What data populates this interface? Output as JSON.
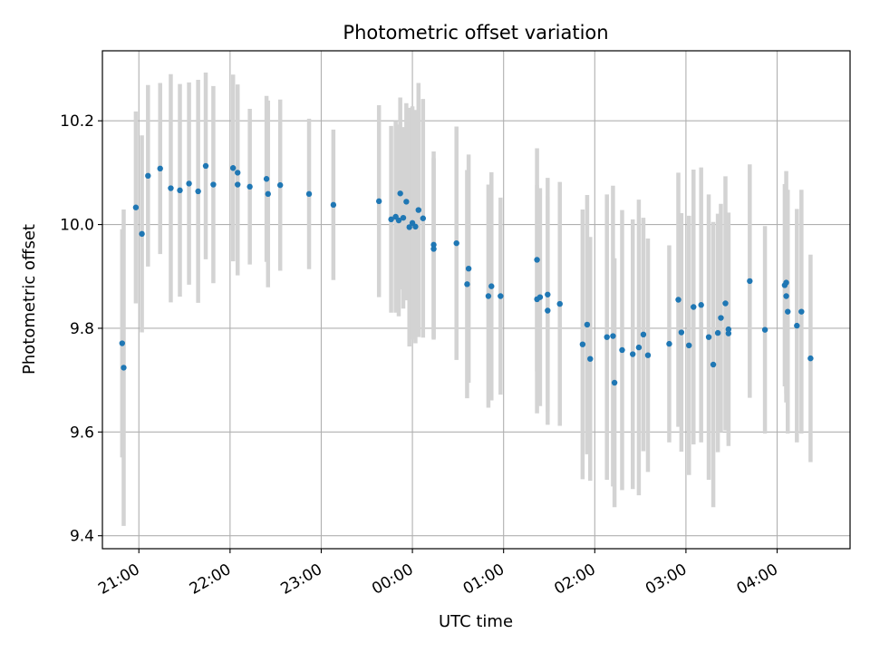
{
  "chart_data": {
    "type": "scatter",
    "title": "Photometric offset variation",
    "xlabel": "UTC time",
    "ylabel": "Photometric offset",
    "x_axis": "time (UTC), spanning from the evening of one day past midnight",
    "xlim": [
      "20:36",
      "04:48"
    ],
    "ylim": [
      9.375,
      10.335
    ],
    "x_ticks": [
      "21:00",
      "22:00",
      "23:00",
      "00:00",
      "01:00",
      "02:00",
      "03:00",
      "04:00"
    ],
    "y_ticks": [
      9.4,
      9.6,
      9.8,
      10.0,
      10.2
    ],
    "y_tick_labels": [
      "9.4",
      "9.6",
      "9.8",
      "10.0",
      "10.2"
    ],
    "grid": true,
    "colors": {
      "points": "#1f77b4",
      "errorbars": "#d3d3d3",
      "grid": "#b0b0b0"
    },
    "series": [
      {
        "x": [
          "20:49",
          "20:50",
          "20:58",
          "21:02",
          "21:06",
          "21:14",
          "21:21",
          "21:27",
          "21:33",
          "21:39",
          "21:44",
          "21:49",
          "22:02",
          "22:05",
          "22:05",
          "22:13",
          "22:24",
          "22:25",
          "22:33",
          "22:52",
          "23:08",
          "23:38",
          "23:46",
          "23:49",
          "23:51",
          "23:52",
          "23:54",
          "23:56",
          "23:58",
          "24:00",
          "24:02",
          "24:04",
          "24:07",
          "24:14",
          "24:14",
          "24:29",
          "24:36",
          "24:37",
          "24:50",
          "24:52",
          "24:58",
          "25:22",
          "25:22",
          "25:24",
          "25:29",
          "25:29",
          "25:37",
          "25:52",
          "25:55",
          "25:57",
          "26:08",
          "26:12",
          "26:13",
          "26:18",
          "26:25",
          "26:29",
          "26:32",
          "26:35",
          "26:49",
          "26:55",
          "26:57",
          "27:02",
          "27:05",
          "27:10",
          "27:15",
          "27:18",
          "27:21",
          "27:23",
          "27:26",
          "27:28",
          "27:28",
          "27:42",
          "27:52",
          "28:05",
          "28:06",
          "28:06",
          "28:07",
          "28:13",
          "28:16",
          "28:22"
        ],
        "y": [
          9.771,
          9.724,
          10.033,
          9.982,
          10.094,
          10.108,
          10.07,
          10.066,
          10.079,
          10.064,
          10.113,
          10.077,
          10.109,
          10.1,
          10.077,
          10.073,
          10.088,
          10.059,
          10.076,
          10.059,
          10.038,
          10.045,
          10.01,
          10.015,
          10.008,
          10.06,
          10.013,
          10.044,
          9.995,
          10.003,
          9.996,
          10.028,
          10.012,
          9.961,
          9.953,
          9.964,
          9.885,
          9.915,
          9.862,
          9.881,
          9.862,
          9.932,
          9.856,
          9.86,
          9.834,
          9.865,
          9.847,
          9.769,
          9.807,
          9.741,
          9.783,
          9.785,
          9.695,
          9.758,
          9.75,
          9.763,
          9.788,
          9.748,
          9.77,
          9.855,
          9.792,
          9.767,
          9.841,
          9.845,
          9.783,
          9.73,
          9.791,
          9.82,
          9.848,
          9.79,
          9.798,
          9.891,
          9.797,
          9.883,
          9.888,
          9.862,
          9.832,
          9.805,
          9.832,
          9.742
        ],
        "err": [
          0.22,
          0.305,
          0.185,
          0.19,
          0.175,
          0.165,
          0.22,
          0.205,
          0.195,
          0.215,
          0.18,
          0.19,
          0.18,
          0.17,
          0.175,
          0.15,
          0.16,
          0.18,
          0.165,
          0.145,
          0.145,
          0.185,
          0.18,
          0.185,
          0.185,
          0.185,
          0.175,
          0.19,
          0.23,
          0.225,
          0.225,
          0.245,
          0.23,
          0.18,
          0.175,
          0.225,
          0.22,
          0.22,
          0.215,
          0.22,
          0.19,
          0.215,
          0.22,
          0.21,
          0.22,
          0.225,
          0.235,
          0.26,
          0.25,
          0.235,
          0.275,
          0.29,
          0.24,
          0.27,
          0.26,
          0.285,
          0.225,
          0.225,
          0.19,
          0.245,
          0.23,
          0.25,
          0.265,
          0.265,
          0.275,
          0.275,
          0.23,
          0.22,
          0.245,
          0.205,
          0.225,
          0.225,
          0.2,
          0.195,
          0.215,
          0.205,
          0.235,
          0.225,
          0.235,
          0.2
        ]
      }
    ]
  }
}
